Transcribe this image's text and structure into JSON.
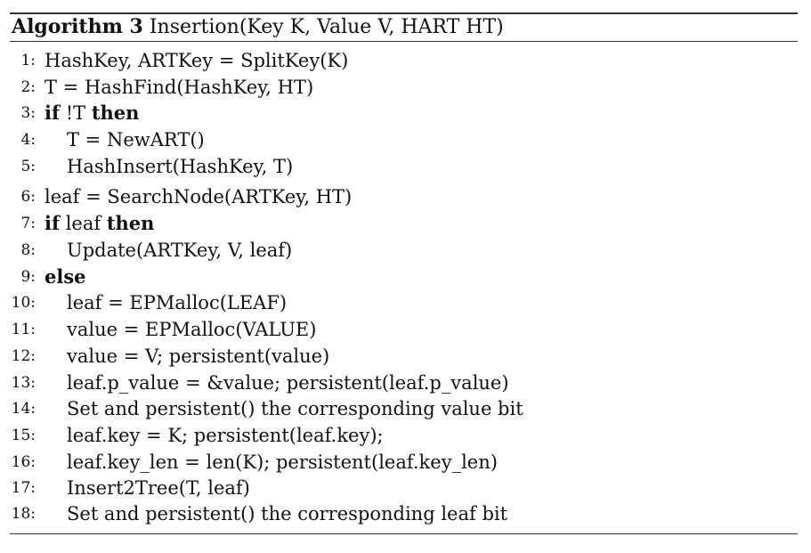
{
  "caption": {
    "label": "Algorithm 3",
    "title": "Insertion(Key K, Value V, HART HT)"
  },
  "lines": [
    {
      "num": "1:",
      "text": "HashKey, ARTKey = SplitKey(K)"
    },
    {
      "num": "2:",
      "text": "T = HashFind(HashKey, HT)"
    },
    {
      "num": "3:",
      "kw": "if",
      "text": "!T",
      "kw2": "then"
    },
    {
      "num": "4:",
      "text": "T = NewART()"
    },
    {
      "num": "5:",
      "text": "HashInsert(HashKey, T)"
    },
    {
      "num": "6:",
      "text": "leaf = SearchNode(ARTKey, HT)"
    },
    {
      "num": "7:",
      "kw": "if",
      "text": "leaf",
      "kw2": "then"
    },
    {
      "num": "8:",
      "text": "Update(ARTKey, V, leaf)"
    },
    {
      "num": "9:",
      "kw": "else"
    },
    {
      "num": "10:",
      "text": "leaf = EPMalloc(LEAF)"
    },
    {
      "num": "11:",
      "text": "value = EPMalloc(VALUE)"
    },
    {
      "num": "12:",
      "text": "value = V; persistent(value)"
    },
    {
      "num": "13:",
      "text": "leaf.p_value = &value; persistent(leaf.p_value)"
    },
    {
      "num": "14:",
      "text": "Set and persistent() the corresponding value bit"
    },
    {
      "num": "15:",
      "text": "leaf.key = K; persistent(leaf.key);"
    },
    {
      "num": "16:",
      "text": "leaf.key_len = len(K); persistent(leaf.key_len)"
    },
    {
      "num": "17:",
      "text": "Insert2Tree(T, leaf)"
    },
    {
      "num": "18:",
      "text": "Set and persistent() the corresponding leaf bit"
    }
  ]
}
